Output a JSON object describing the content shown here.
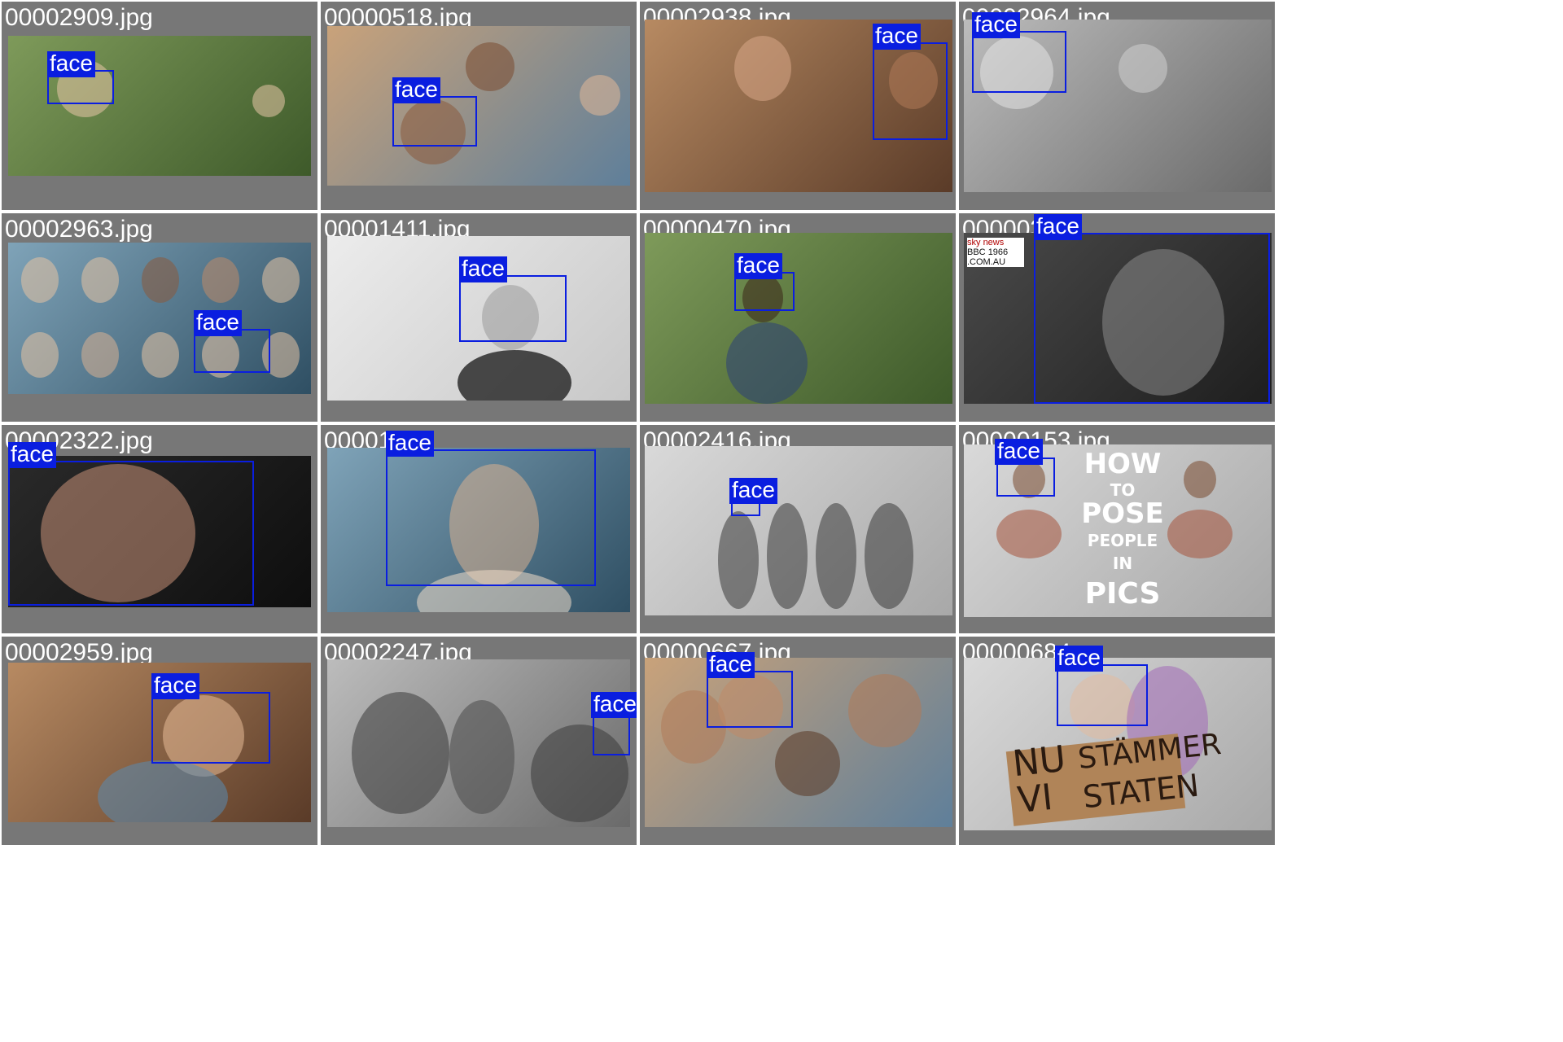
{
  "tiles": [
    {
      "filename": "00002909.jpg",
      "label": "face"
    },
    {
      "filename": "00000518.jpg",
      "label": "face"
    },
    {
      "filename": "00002938.jpg",
      "label": "face"
    },
    {
      "filename": "00002964.jpg",
      "label": "face"
    },
    {
      "filename": "00002963.jpg",
      "label": "face"
    },
    {
      "filename": "00001411.jpg",
      "label": "face"
    },
    {
      "filename": "00000470.jpg",
      "label": "face"
    },
    {
      "filename": "000003",
      "label": "face",
      "logo_text": [
        "sky",
        "news",
        "BBC",
        "1966",
        ".COM.AU"
      ]
    },
    {
      "filename": "00002322.jpg",
      "label": "face"
    },
    {
      "filename": "000016",
      "label": "face"
    },
    {
      "filename": "00002416.jpg",
      "label": "face"
    },
    {
      "filename": "00000153.jpg",
      "label": "face",
      "overlay": [
        "HOW",
        "TO",
        "POSE",
        "PEOPLE",
        "IN",
        "PICS"
      ]
    },
    {
      "filename": "00002959.jpg",
      "label": "face"
    },
    {
      "filename": "00002247.jpg",
      "label": "face"
    },
    {
      "filename": "00000667.jpg",
      "label": "face"
    },
    {
      "filename": "00000684",
      "label": "face",
      "sign": [
        "NU",
        "STÄMMER",
        "VI",
        "STATEN"
      ]
    }
  ],
  "colors": {
    "box": "#0a1ee0",
    "tile_bg": "#777777",
    "filename_text": "#ffffff"
  }
}
